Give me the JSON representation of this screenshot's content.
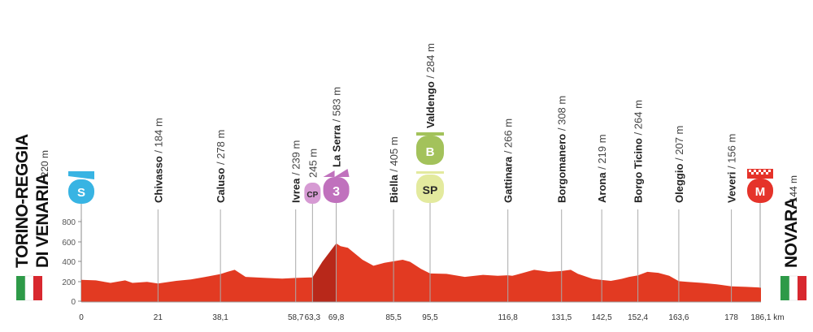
{
  "start": {
    "name_line1": "TORINO-REGGIA",
    "name_line2": "DI VENARIA",
    "alt": "/ 220 m",
    "badge": "S"
  },
  "finish": {
    "name": "NOVARA",
    "alt": "/ 144 m",
    "badge": "M"
  },
  "markers": [
    {
      "name": "Chivasso",
      "alt": "/ 184 m",
      "km": "21"
    },
    {
      "name": "Caluso",
      "alt": "/ 278 m",
      "km": "38,1"
    },
    {
      "name": "Ivrea",
      "alt": "/ 239 m",
      "km": "58,7"
    },
    {
      "name": "",
      "alt": "245 m",
      "km": "63,3",
      "badge": "CP"
    },
    {
      "name": "La Serra",
      "alt": "/ 583 m",
      "km": "69,8",
      "badge": "3"
    },
    {
      "name": "Biella",
      "alt": "/ 405 m",
      "km": "85,5"
    },
    {
      "name": "Valdengo",
      "alt": "/ 284 m",
      "km": "95,5",
      "badge": "B",
      "badge2": "SP"
    },
    {
      "name": "Gattinara",
      "alt": "/ 266 m",
      "km": "116,8"
    },
    {
      "name": "Borgomanero",
      "alt": "/ 308 m",
      "km": "131,5"
    },
    {
      "name": "Arona",
      "alt": "/ 219 m",
      "km": "142,5"
    },
    {
      "name": "Borgo Ticino",
      "alt": "/ 264 m",
      "km": "152,4"
    },
    {
      "name": "Oleggio",
      "alt": "/ 207 m",
      "km": "163,6"
    },
    {
      "name": "Veveri",
      "alt": "/ 156 m",
      "km": "178"
    }
  ],
  "x_ticks": [
    "0",
    "186,1 km"
  ],
  "y_ticks": [
    "800",
    "600",
    "400",
    "200",
    "0"
  ],
  "colors": {
    "profile": "#e23a22",
    "climb": "#b8281a",
    "start_badge": "#38b4e3",
    "climb_badge": "#c071bd",
    "sprint_badge": "#a3c25b",
    "cp_badge": "#d69ad3",
    "finish_badge": "#e5332a"
  },
  "chart_data": {
    "type": "area",
    "xlabel": "km",
    "ylabel": "",
    "xlim": [
      0,
      186.1
    ],
    "ylim": [
      0,
      800
    ],
    "grid": false,
    "x": [
      0,
      4,
      8,
      12,
      14,
      18,
      21,
      26,
      30,
      34,
      38.1,
      40,
      42,
      45,
      50,
      55,
      58.7,
      63.3,
      66,
      69.8,
      71,
      73,
      75,
      77,
      80,
      83,
      85.5,
      88,
      90,
      93,
      95.5,
      100,
      105,
      110,
      114,
      116.8,
      118,
      120,
      124,
      128,
      131.5,
      134,
      136,
      140,
      142.5,
      145,
      148,
      150,
      152.4,
      155,
      158,
      161,
      163.6,
      166,
      170,
      174,
      178,
      182,
      186.1
    ],
    "values": [
      220,
      215,
      190,
      215,
      190,
      200,
      184,
      210,
      225,
      250,
      278,
      300,
      320,
      250,
      240,
      232,
      239,
      245,
      400,
      583,
      555,
      540,
      480,
      420,
      360,
      390,
      405,
      420,
      400,
      330,
      284,
      280,
      250,
      270,
      260,
      266,
      260,
      280,
      320,
      300,
      308,
      320,
      280,
      230,
      219,
      210,
      230,
      250,
      264,
      300,
      290,
      260,
      207,
      200,
      190,
      175,
      156,
      150,
      144
    ]
  }
}
